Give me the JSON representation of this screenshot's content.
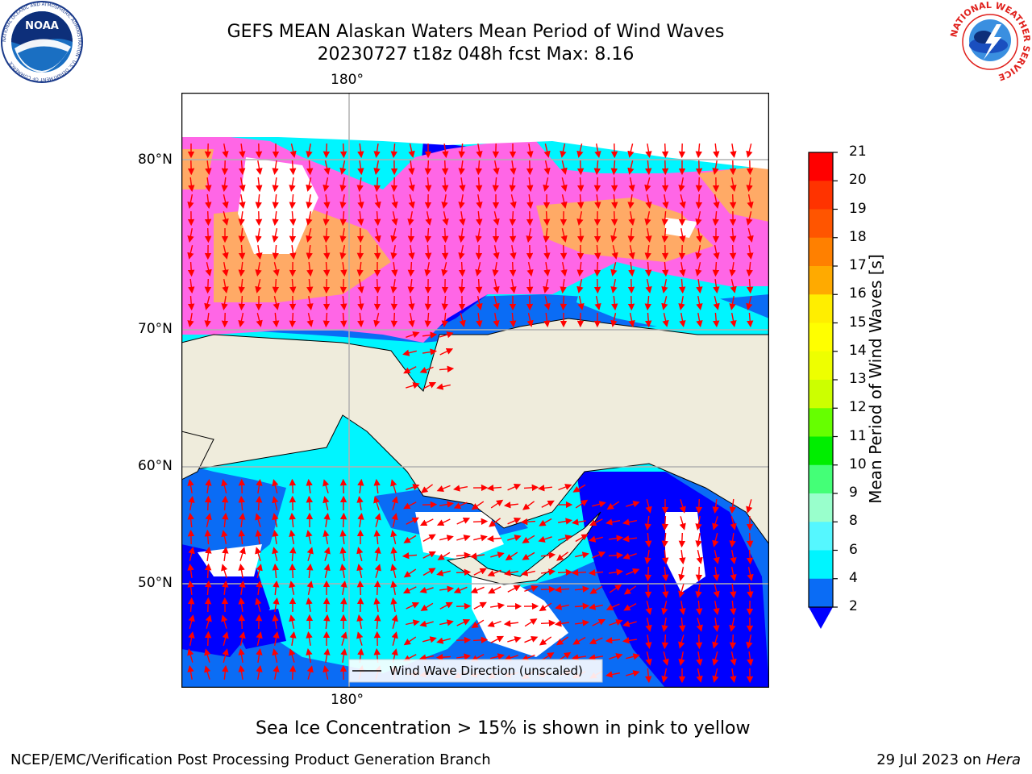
{
  "header": {
    "title_line1": "GEFS MEAN Alaskan Waters Mean Period of Wind Waves",
    "title_line2": "20230727 t18z 048h fcst   Max: 8.16"
  },
  "logos": {
    "noaa_text": "NOAA",
    "noaa_ring_text": "NATIONAL OCEANIC AND ATMOSPHERIC ADMINISTRATION · U.S. DEPARTMENT OF COMMERCE",
    "nws_ring_text": "NATIONAL WEATHER SERVICE"
  },
  "map": {
    "top_lon_label": "180°",
    "bottom_lon_label": "180°",
    "lat_labels": [
      "80°N",
      "70°N",
      "60°N",
      "50°N"
    ],
    "legend_label": "Wind Wave Direction (unscaled)",
    "colors": {
      "land": "#efecdc",
      "gridline": "#b0b0b0",
      "arrow": "#ff0000",
      "ice_pink": "#ff66e6",
      "ice_orange": "#ffaa66",
      "water_blue": "#0000ff",
      "water_mid": "#0a6cf5",
      "water_cyan": "#00f5ff",
      "water_light": "#55f7ff"
    }
  },
  "colorbar": {
    "label": "Mean Period of Wind Waves [s]",
    "ticks": [
      "21",
      "20",
      "19",
      "18",
      "17",
      "16",
      "15",
      "14",
      "13",
      "12",
      "11",
      "10",
      "9",
      "8",
      "6",
      "4",
      "2"
    ],
    "band_colors": [
      "#ff0000",
      "#ff3300",
      "#ff5500",
      "#ff8000",
      "#ffaa00",
      "#ffee00",
      "#ffff00",
      "#eeff00",
      "#ccff00",
      "#66ff00",
      "#00ee00",
      "#44ff77",
      "#99ffcc",
      "#55f7ff",
      "#00f5ff",
      "#0a6cf5"
    ],
    "extend_color": "#0000ff"
  },
  "notes": {
    "sea_ice": "Sea Ice Concentration > 15% is shown in pink to yellow"
  },
  "footer": {
    "left": "NCEP/EMC/Verification Post Processing Product Generation Branch",
    "date": "29 Jul 2023 on",
    "machine": "Hera"
  }
}
